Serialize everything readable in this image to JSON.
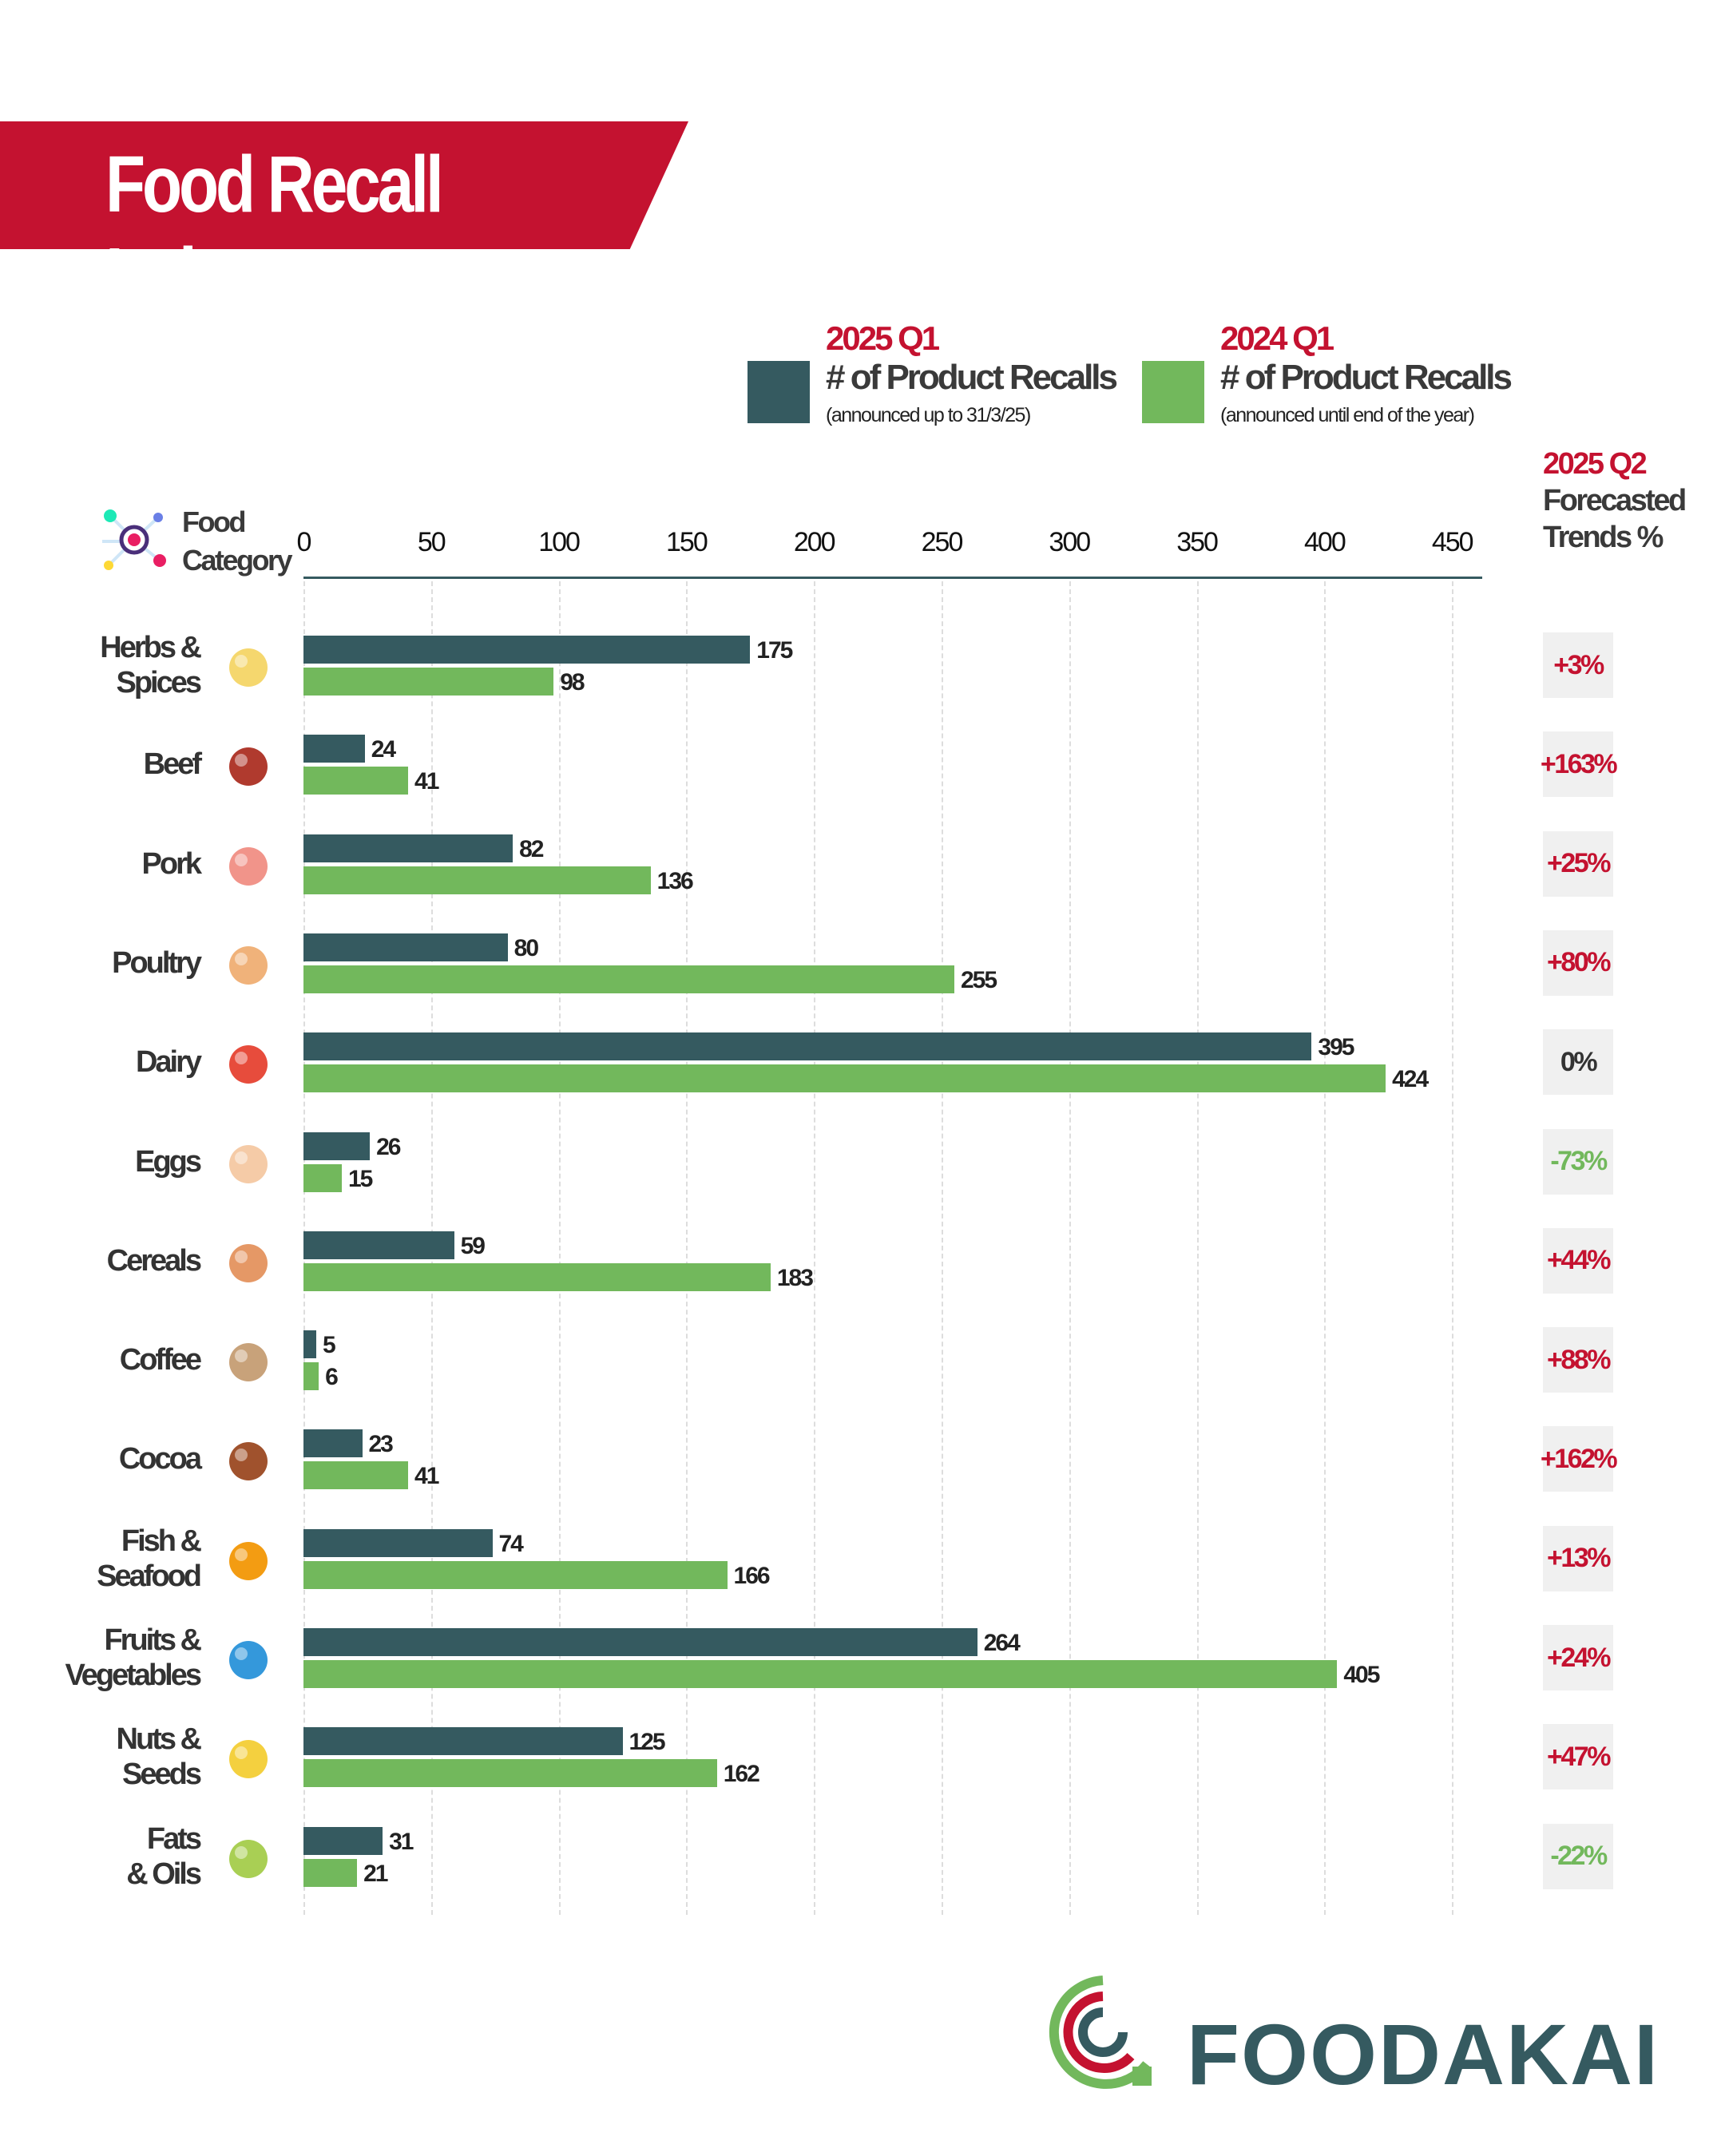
{
  "title": "Food Recall Index",
  "colors": {
    "dark": "#355a60",
    "green": "#72b85c",
    "red": "#c41230",
    "positive_trend": "#c41230",
    "negative_trend": "#72b85c"
  },
  "legend": [
    {
      "year": "2025 Q1",
      "label": "#  of Product Recalls",
      "sub": "(announced up to 31/3/25)",
      "color": "#355a60"
    },
    {
      "year": "2024 Q1",
      "label": "#  of Product Recalls",
      "sub": "(announced until end of the year)",
      "color": "#72b85c"
    }
  ],
  "forecast_header": {
    "year": "2025 Q2",
    "line1": "Forecasted",
    "line2": "Trends %"
  },
  "category_header": {
    "line1": "Food",
    "line2": "Category"
  },
  "brand": "FOODAKAI",
  "chart_data": {
    "type": "bar",
    "orientation": "horizontal",
    "xlim": [
      0,
      450
    ],
    "ticks": [
      "0",
      "50",
      "100",
      "150",
      "200",
      "250",
      "300",
      "350",
      "400",
      "450"
    ],
    "grid": true,
    "legend_placement": "top",
    "categories": [
      {
        "label": [
          "Herbs &",
          "Spices"
        ],
        "icon": "mortar-herbs-icon",
        "trend": "+3%",
        "dir": "up"
      },
      {
        "label": [
          "Beef"
        ],
        "icon": "beef-icon",
        "trend": "+163%",
        "dir": "up"
      },
      {
        "label": [
          "Pork"
        ],
        "icon": "pork-icon",
        "trend": "+25%",
        "dir": "up"
      },
      {
        "label": [
          "Poultry"
        ],
        "icon": "chicken-leg-icon",
        "trend": "+80%",
        "dir": "up"
      },
      {
        "label": [
          "Dairy"
        ],
        "icon": "dairy-icon",
        "trend": "0%",
        "dir": "flat"
      },
      {
        "label": [
          "Eggs"
        ],
        "icon": "eggs-icon",
        "trend": "-73%",
        "dir": "down"
      },
      {
        "label": [
          "Cereals"
        ],
        "icon": "bread-wheat-icon",
        "trend": "+44%",
        "dir": "up"
      },
      {
        "label": [
          "Coffee"
        ],
        "icon": "coffee-bag-icon",
        "trend": "+88%",
        "dir": "up"
      },
      {
        "label": [
          "Cocoa"
        ],
        "icon": "cocoa-icon",
        "trend": "+162%",
        "dir": "up"
      },
      {
        "label": [
          "Fish &",
          "Seafood"
        ],
        "icon": "fish-shrimp-icon",
        "trend": "+13%",
        "dir": "up"
      },
      {
        "label": [
          "Fruits &",
          "Vegetables"
        ],
        "icon": "produce-basket-icon",
        "trend": "+24%",
        "dir": "up"
      },
      {
        "label": [
          "Nuts &",
          "Seeds"
        ],
        "icon": "nuts-icon",
        "trend": "+47%",
        "dir": "up"
      },
      {
        "label": [
          "Fats",
          "& Oils"
        ],
        "icon": "oil-bottle-icon",
        "trend": "-22%",
        "dir": "down"
      }
    ],
    "series": [
      {
        "name": "2025 Q1",
        "values": [
          175,
          24,
          82,
          80,
          395,
          26,
          59,
          5,
          23,
          74,
          264,
          125,
          31
        ]
      },
      {
        "name": "2024 Q1",
        "values": [
          98,
          41,
          136,
          255,
          424,
          15,
          183,
          6,
          41,
          166,
          405,
          162,
          21
        ]
      }
    ]
  }
}
